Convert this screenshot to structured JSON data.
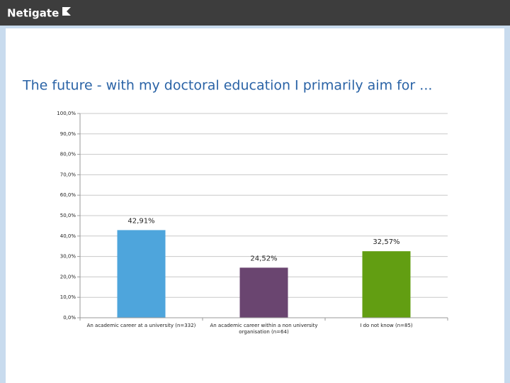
{
  "logo": "Netigate",
  "chart_data": {
    "type": "bar",
    "title": "The future - with my doctoral education I primarily aim for ...",
    "categories": [
      "An academic career at a university (n=332)",
      "An academic career within a non university organisation (n=64)",
      "I do not know (n=85)"
    ],
    "values": [
      42.91,
      24.52,
      32.57
    ],
    "value_labels": [
      "42,91%",
      "24,52%",
      "32,57%"
    ],
    "colors": [
      "#4ea5dc",
      "#6a4570",
      "#629e12"
    ],
    "ylim": [
      0,
      100
    ],
    "yticks": [
      {
        "value": 0,
        "label": "0,0%"
      },
      {
        "value": 10,
        "label": "10,0%"
      },
      {
        "value": 20,
        "label": "20,0%"
      },
      {
        "value": 30,
        "label": "30,0%"
      },
      {
        "value": 40,
        "label": "40,0%"
      },
      {
        "value": 50,
        "label": "50,0%"
      },
      {
        "value": 60,
        "label": "60,0%"
      },
      {
        "value": 70,
        "label": "70,0%"
      },
      {
        "value": 80,
        "label": "80,0%"
      },
      {
        "value": 90,
        "label": "90,0%"
      },
      {
        "value": 100,
        "label": "100,0%"
      }
    ],
    "grid": true
  }
}
